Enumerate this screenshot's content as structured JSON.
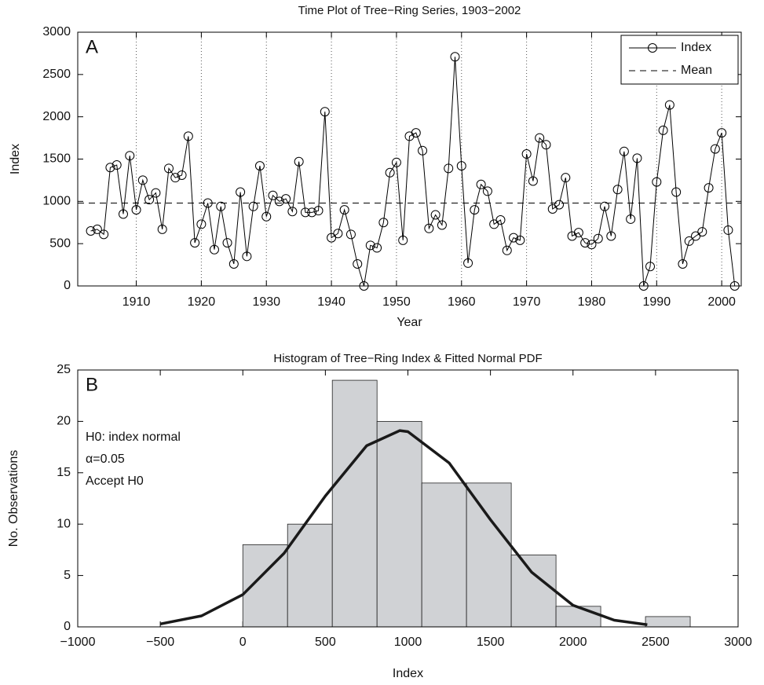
{
  "chart_data": [
    {
      "type": "line",
      "title": "Time Plot of Tree−Ring Series, 1903−2002",
      "panel_label": "A",
      "xlabel": "Year",
      "ylabel": "Index",
      "x": [
        1903,
        1904,
        1905,
        1906,
        1907,
        1908,
        1909,
        1910,
        1911,
        1912,
        1913,
        1914,
        1915,
        1916,
        1917,
        1918,
        1919,
        1920,
        1921,
        1922,
        1923,
        1924,
        1925,
        1926,
        1927,
        1928,
        1929,
        1930,
        1931,
        1932,
        1933,
        1934,
        1935,
        1936,
        1937,
        1938,
        1939,
        1940,
        1941,
        1942,
        1943,
        1944,
        1945,
        1946,
        1947,
        1948,
        1949,
        1950,
        1951,
        1952,
        1953,
        1954,
        1955,
        1956,
        1957,
        1958,
        1959,
        1960,
        1961,
        1962,
        1963,
        1964,
        1965,
        1966,
        1967,
        1968,
        1969,
        1970,
        1971,
        1972,
        1973,
        1974,
        1975,
        1976,
        1977,
        1978,
        1979,
        1980,
        1981,
        1982,
        1983,
        1984,
        1985,
        1986,
        1987,
        1988,
        1989,
        1990,
        1991,
        1992,
        1993,
        1994,
        1995,
        1996,
        1997,
        1998,
        1999,
        2000,
        2001,
        2002
      ],
      "series": [
        {
          "name": "Index",
          "color": "#000000",
          "marker": "circle",
          "values": [
            650,
            670,
            610,
            1400,
            1430,
            850,
            1540,
            900,
            1250,
            1020,
            1100,
            670,
            1390,
            1280,
            1310,
            1770,
            510,
            730,
            980,
            430,
            940,
            510,
            260,
            1110,
            350,
            940,
            1420,
            820,
            1070,
            1000,
            1030,
            880,
            1470,
            870,
            870,
            890,
            2060,
            570,
            620,
            900,
            610,
            260,
            0,
            480,
            450,
            750,
            1340,
            1460,
            540,
            1770,
            1810,
            1600,
            680,
            840,
            720,
            1390,
            2710,
            1420,
            270,
            900,
            1200,
            1120,
            730,
            780,
            420,
            570,
            540,
            1560,
            1240,
            1750,
            1670,
            910,
            960,
            1280,
            590,
            630,
            510,
            490,
            560,
            940,
            590,
            1140,
            1590,
            790,
            1510,
            0,
            230,
            1230,
            1840,
            2140,
            1110,
            260,
            530,
            590,
            640,
            1160,
            1620,
            1810,
            660,
            0
          ]
        },
        {
          "name": "Mean",
          "color": "#000000",
          "linestyle": "dashed",
          "y": 980
        }
      ],
      "xlim": [
        1901,
        2003
      ],
      "xticks": [
        1910,
        1920,
        1930,
        1940,
        1950,
        1960,
        1970,
        1980,
        1990,
        2000
      ],
      "ylim": [
        0,
        3000
      ],
      "yticks": [
        0,
        500,
        1000,
        1500,
        2000,
        2500,
        3000
      ],
      "grid": "x",
      "legend": "northeast"
    },
    {
      "type": "histogram",
      "title": "Histogram of Tree−Ring Index & Fitted Normal PDF",
      "panel_label": "B",
      "xlabel": "Index",
      "ylabel": "No. Observations",
      "annotations": [
        "H0: index normal",
        "α=0.05",
        "Accept H0"
      ],
      "bins": [
        0,
        271,
        542,
        813,
        1084,
        1355,
        1626,
        1897,
        2168,
        2439,
        2710
      ],
      "values": [
        8,
        10,
        24,
        20,
        14,
        14,
        7,
        2,
        0,
        1
      ],
      "color": "#d0d2d5",
      "fit": {
        "color": "#1a1a1a",
        "x": [
          -500,
          -250,
          0,
          250,
          500,
          750,
          950,
          1000,
          1250,
          1500,
          1750,
          2000,
          2250,
          2450
        ],
        "y": [
          0.28,
          1.07,
          3.14,
          7.17,
          12.74,
          17.63,
          19.1,
          19.0,
          15.95,
          10.43,
          5.31,
          2.1,
          0.65,
          0.21
        ]
      },
      "xlim": [
        -1000,
        3000
      ],
      "xticks": [
        {
          "value": -1000,
          "label": "−1000"
        },
        {
          "value": -500,
          "label": "−500"
        },
        0,
        500,
        1000,
        1500,
        2000,
        2500,
        3000
      ],
      "ylim": [
        0,
        25
      ],
      "yticks": [
        0,
        5,
        10,
        15,
        20,
        25
      ]
    }
  ]
}
